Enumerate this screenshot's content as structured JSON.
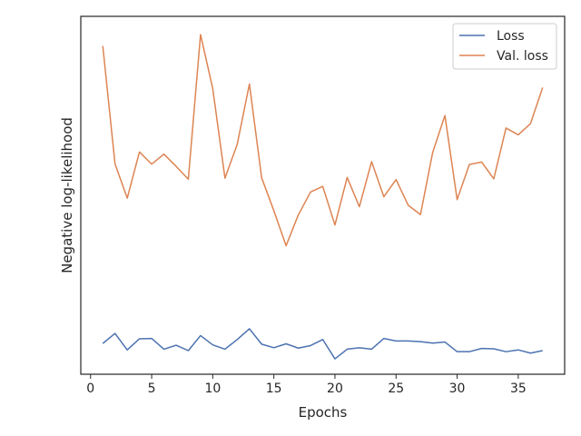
{
  "chart_data": {
    "type": "line",
    "xlabel": "Epochs",
    "ylabel": "Negative log-likelihood",
    "xlim": [
      -0.8,
      38.8
    ],
    "ylim": [
      0.0,
      1.0
    ],
    "xticks": [
      0,
      5,
      10,
      15,
      20,
      25,
      30,
      35
    ],
    "y_tick_labels_shown": false,
    "grid": false,
    "legend_position": "top-right",
    "x": [
      1,
      2,
      3,
      4,
      5,
      6,
      7,
      8,
      9,
      10,
      11,
      12,
      13,
      14,
      15,
      16,
      17,
      18,
      19,
      20,
      21,
      22,
      23,
      24,
      25,
      26,
      27,
      28,
      29,
      30,
      31,
      32,
      33,
      34,
      35,
      36,
      37
    ],
    "series": [
      {
        "name": "Loss",
        "color": "#4c72b0",
        "values": [
          0.086,
          0.114,
          0.068,
          0.099,
          0.1,
          0.07,
          0.081,
          0.066,
          0.108,
          0.082,
          0.07,
          0.097,
          0.127,
          0.084,
          0.074,
          0.085,
          0.073,
          0.08,
          0.097,
          0.043,
          0.07,
          0.074,
          0.07,
          0.1,
          0.093,
          0.093,
          0.091,
          0.087,
          0.09,
          0.063,
          0.063,
          0.072,
          0.071,
          0.063,
          0.068,
          0.059,
          0.066
        ]
      },
      {
        "name": "Val. loss",
        "color": "#dd8452",
        "values": [
          0.917,
          0.588,
          0.492,
          0.621,
          0.587,
          0.615,
          0.581,
          0.545,
          0.949,
          0.798,
          0.548,
          0.642,
          0.811,
          0.549,
          0.457,
          0.359,
          0.445,
          0.509,
          0.525,
          0.417,
          0.55,
          0.468,
          0.594,
          0.496,
          0.544,
          0.472,
          0.446,
          0.62,
          0.723,
          0.488,
          0.586,
          0.593,
          0.546,
          0.688,
          0.669,
          0.7,
          0.801
        ]
      }
    ]
  }
}
